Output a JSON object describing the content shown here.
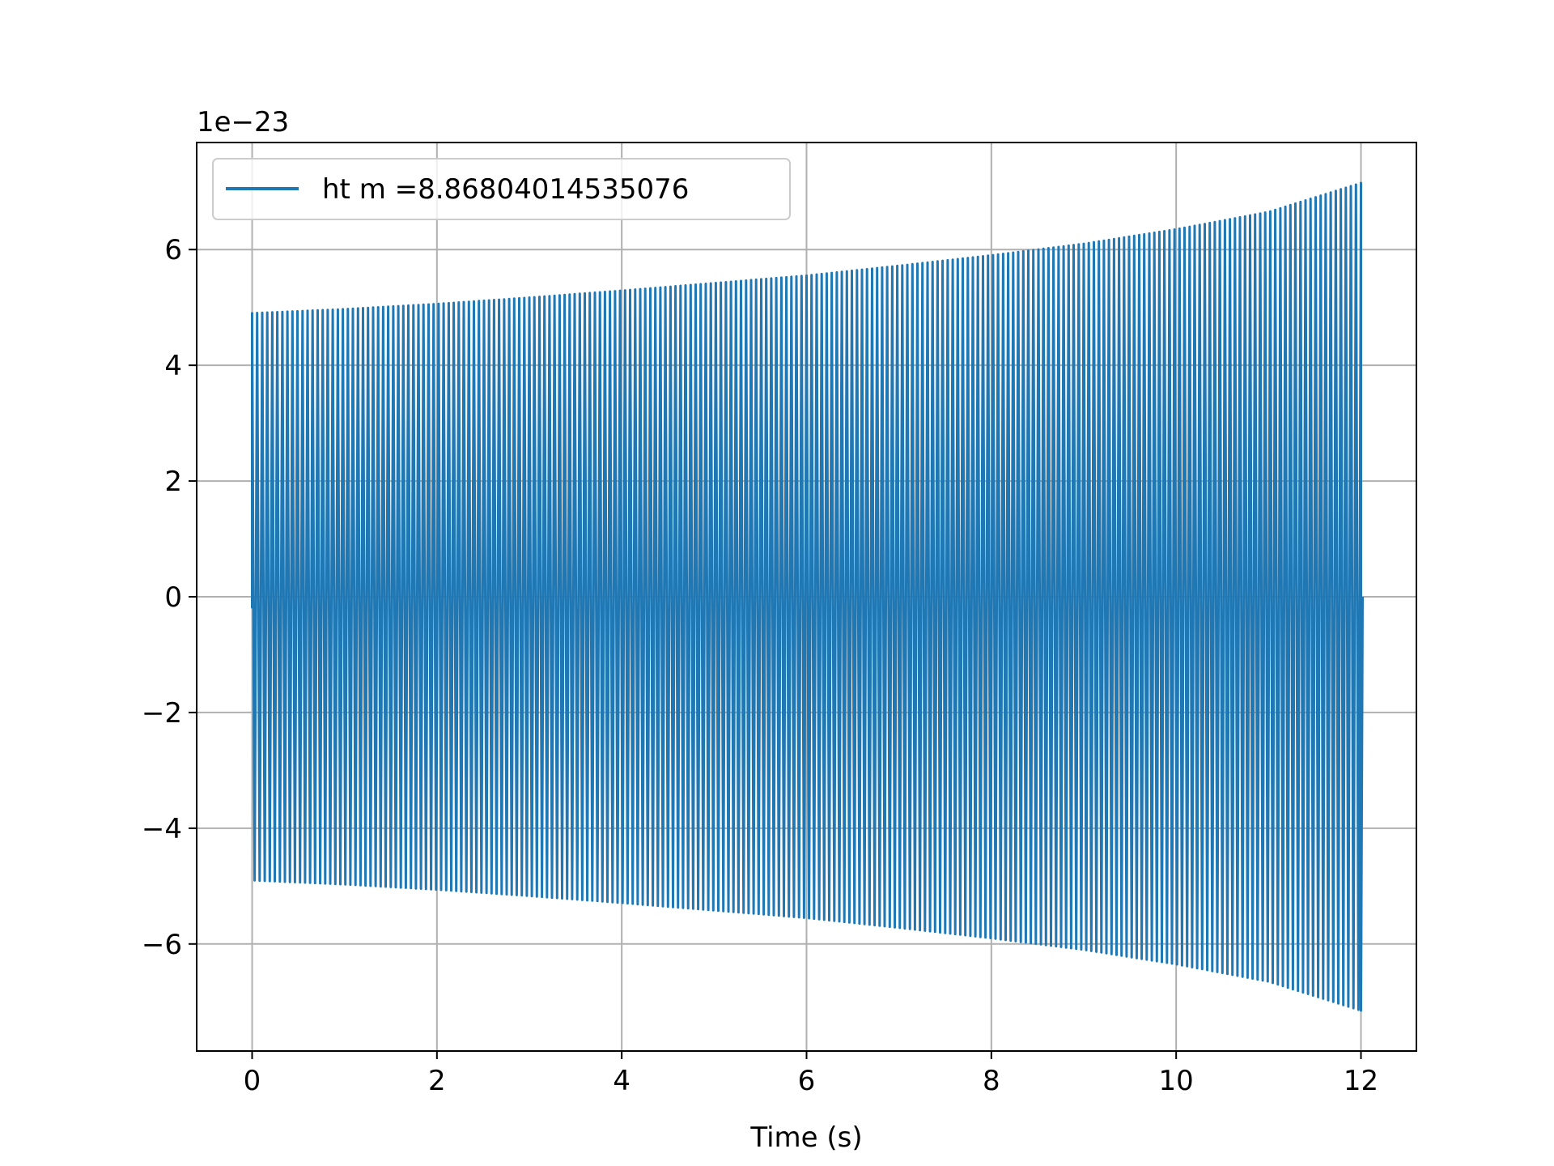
{
  "chart_data": {
    "type": "line",
    "xlabel": "Time (s)",
    "ylabel": "",
    "offset_text": "1e−23",
    "xlim": [
      -0.6,
      12.6
    ],
    "ylim": [
      -7.85,
      7.85
    ],
    "xticks": [
      0,
      2,
      4,
      6,
      8,
      10,
      12
    ],
    "xtick_labels": [
      "0",
      "2",
      "4",
      "6",
      "8",
      "10",
      "12"
    ],
    "yticks": [
      -6,
      -4,
      -2,
      0,
      2,
      4,
      6
    ],
    "ytick_labels": [
      "−6",
      "−4",
      "−2",
      "0",
      "2",
      "4",
      "6"
    ],
    "grid": true,
    "legend_position": "top-left",
    "series": [
      {
        "name": "ht m =8.86804014535076",
        "color": "#1f77b4",
        "envelope": {
          "x": [
            0,
            1,
            2,
            3,
            4,
            5,
            6,
            7,
            8,
            9,
            10,
            11,
            12
          ],
          "upper": [
            4.9,
            4.97,
            5.06,
            5.17,
            5.29,
            5.42,
            5.55,
            5.72,
            5.9,
            6.1,
            6.35,
            6.65,
            7.15
          ],
          "lower": [
            -4.9,
            -4.97,
            -5.06,
            -5.17,
            -5.29,
            -5.42,
            -5.55,
            -5.72,
            -5.9,
            -6.1,
            -6.35,
            -6.65,
            -7.15
          ]
        }
      }
    ]
  }
}
